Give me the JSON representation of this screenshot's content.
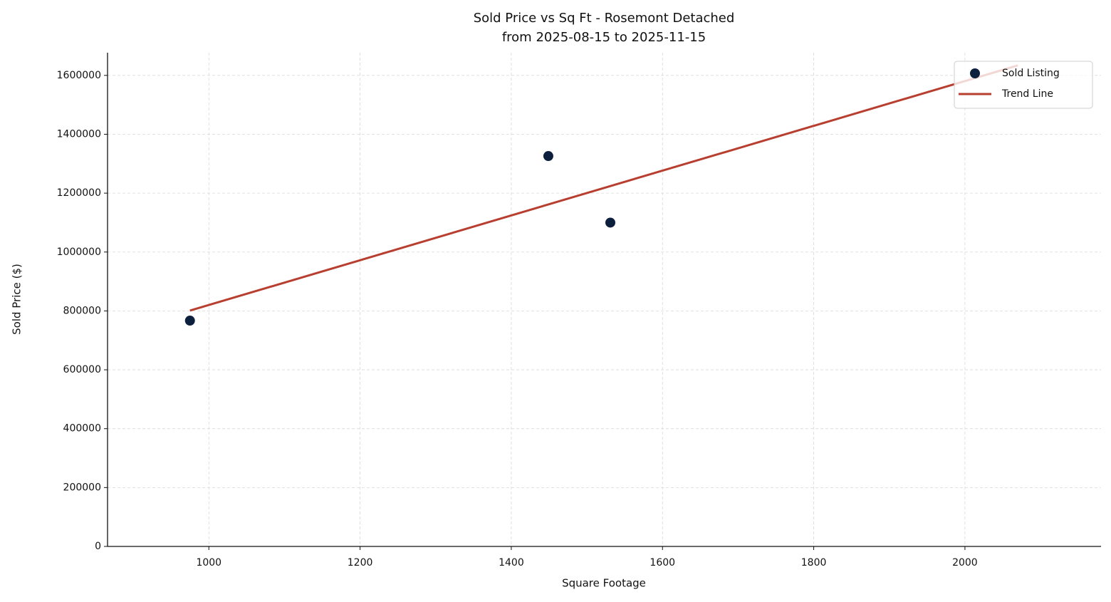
{
  "chart_data": {
    "type": "scatter",
    "title": "Sold Price vs Sq Ft - Rosemont Detached",
    "subtitle": "from 2025-08-15 to 2025-11-15",
    "x_label": "Square Footage",
    "y_label": "Sold Price ($)",
    "series": [
      {
        "name": "Sold Listing",
        "type": "scatter",
        "color": "#0c1f3d",
        "x": [
          975,
          1449,
          1531
        ],
        "values": [
          767000,
          1326000,
          1100000
        ]
      },
      {
        "name": "Trend Line",
        "type": "line",
        "color": "#b83f30",
        "x": [
          975,
          2070
        ],
        "values": [
          801000,
          1634000
        ]
      }
    ],
    "xlim": [
      866,
      2180
    ],
    "xticks": [
      1000,
      1200,
      1400,
      1600,
      1800,
      2000
    ],
    "ylim": [
      0,
      1677000
    ],
    "yticks": [
      0,
      200000,
      400000,
      600000,
      800000,
      1000000,
      1200000,
      1400000,
      1600000
    ],
    "grid": true,
    "legend": "upper right"
  }
}
